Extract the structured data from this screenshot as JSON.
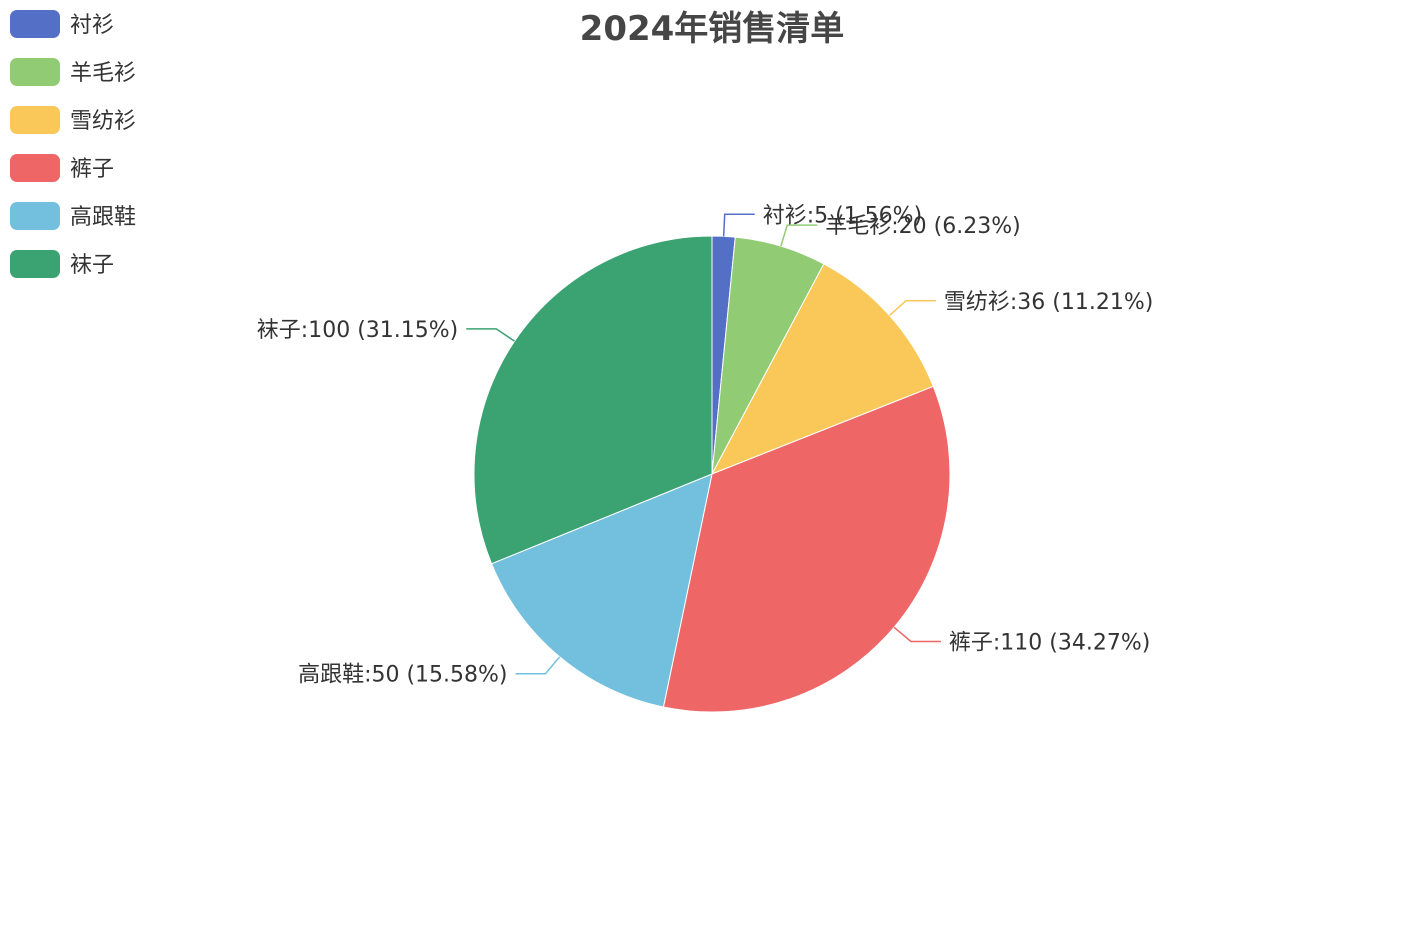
{
  "chart_data": {
    "type": "pie",
    "title": "2024年销售清单",
    "categories": [
      "衬衫",
      "羊毛衫",
      "雪纺衫",
      "裤子",
      "高跟鞋",
      "袜子"
    ],
    "values": [
      5,
      20,
      36,
      110,
      50,
      100
    ],
    "percent_labels": [
      "1.56%",
      "6.23%",
      "11.21%",
      "34.27%",
      "15.58%",
      "31.15%"
    ],
    "colors": [
      "#5470c6",
      "#91cc75",
      "#fac858",
      "#ee6666",
      "#73c0de",
      "#3ba272"
    ],
    "legend_position": "top-left",
    "start_angle": "12 o'clock",
    "direction": "clockwise"
  }
}
